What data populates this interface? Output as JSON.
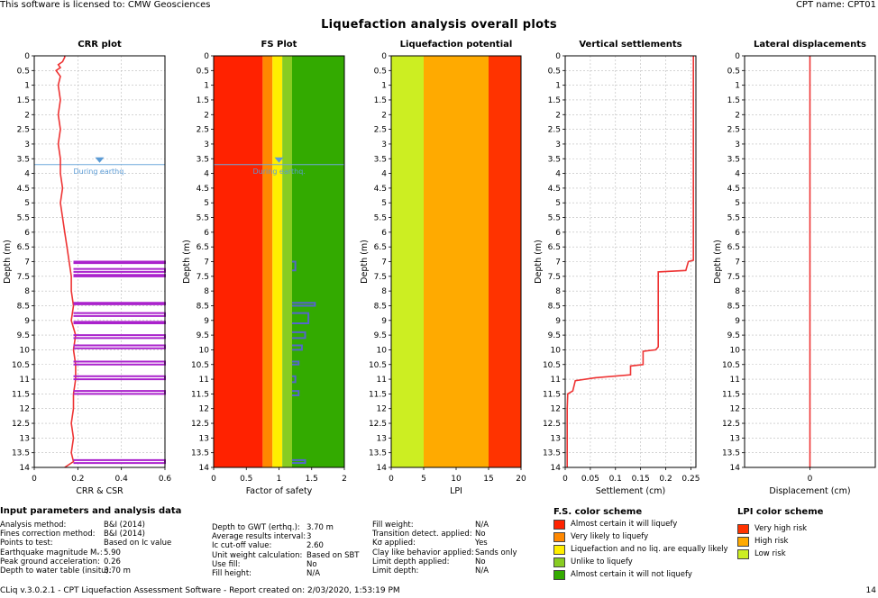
{
  "header": {
    "license": "This software is licensed to: CMW Geosciences",
    "cpt_name": "CPT name: CPT01",
    "title": "Liquefaction analysis overall plots"
  },
  "chart_data": [
    {
      "id": "crr",
      "type": "line",
      "title": "CRR plot",
      "xlabel": "CRR & CSR",
      "ylabel": "Depth (m)",
      "xlim": [
        0,
        0.6
      ],
      "ylim": [
        14,
        0
      ],
      "xticks": [
        "0",
        "0.2",
        "0.4",
        "0.6"
      ],
      "yticks": [
        "0",
        "0.5",
        "1",
        "1.5",
        "2",
        "2.5",
        "3",
        "3.5",
        "4",
        "4.5",
        "5",
        "5.5",
        "6",
        "6.5",
        "7",
        "7.5",
        "8",
        "8.5",
        "9",
        "9.5",
        "10",
        "10.5",
        "11",
        "11.5",
        "12",
        "12.5",
        "13",
        "13.5",
        "14"
      ],
      "annotation": "During earthq.",
      "gwt_depth": 3.7,
      "series": [
        {
          "name": "CRR",
          "color": "#ee3333",
          "points": [
            [
              0.14,
              0
            ],
            [
              0.14,
              0.05
            ],
            [
              0.13,
              0.2
            ],
            [
              0.11,
              0.3
            ],
            [
              0.12,
              0.4
            ],
            [
              0.1,
              0.5
            ],
            [
              0.12,
              0.7
            ],
            [
              0.11,
              1.0
            ],
            [
              0.12,
              1.5
            ],
            [
              0.11,
              2.0
            ],
            [
              0.12,
              2.5
            ],
            [
              0.11,
              3.0
            ],
            [
              0.12,
              3.5
            ],
            [
              0.12,
              4.0
            ],
            [
              0.13,
              4.5
            ],
            [
              0.12,
              5.0
            ],
            [
              0.13,
              5.5
            ],
            [
              0.14,
              6.0
            ],
            [
              0.15,
              6.5
            ],
            [
              0.16,
              7.0
            ],
            [
              0.17,
              7.5
            ],
            [
              0.17,
              8.0
            ],
            [
              0.18,
              8.5
            ],
            [
              0.17,
              9.0
            ],
            [
              0.19,
              9.5
            ],
            [
              0.18,
              10.0
            ],
            [
              0.19,
              10.5
            ],
            [
              0.19,
              11.0
            ],
            [
              0.18,
              11.5
            ],
            [
              0.18,
              12.0
            ],
            [
              0.17,
              12.5
            ],
            [
              0.18,
              13.0
            ],
            [
              0.17,
              13.5
            ],
            [
              0.18,
              13.8
            ],
            [
              0.14,
              14.0
            ]
          ]
        },
        {
          "name": "CSR",
          "color": "#aa22cc",
          "segments": [
            [
              7.0,
              7.05,
              0.6
            ],
            [
              7.25,
              7.35,
              0.6
            ],
            [
              7.45,
              7.5,
              0.6
            ],
            [
              8.4,
              8.45,
              0.6
            ],
            [
              8.75,
              8.85,
              0.6
            ],
            [
              9.05,
              9.1,
              0.6
            ],
            [
              9.5,
              9.6,
              0.6
            ],
            [
              9.85,
              9.95,
              0.6
            ],
            [
              10.4,
              10.5,
              0.6
            ],
            [
              10.9,
              11.0,
              0.6
            ],
            [
              11.4,
              11.5,
              0.6
            ],
            [
              13.75,
              13.85,
              0.6
            ]
          ]
        }
      ]
    },
    {
      "id": "fs",
      "type": "line",
      "title": "FS Plot",
      "xlabel": "Factor of safety",
      "ylabel": "Depth (m)",
      "xlim": [
        0,
        2
      ],
      "ylim": [
        14,
        0
      ],
      "xticks": [
        "0",
        "0.5",
        "1",
        "1.5",
        "2"
      ],
      "yticks": [
        "0",
        "0.5",
        "1",
        "1.5",
        "2",
        "2.5",
        "3",
        "3.5",
        "4",
        "4.5",
        "5",
        "5.5",
        "6",
        "6.5",
        "7",
        "7.5",
        "8",
        "8.5",
        "9",
        "9.5",
        "10",
        "10.5",
        "11",
        "11.5",
        "12",
        "12.5",
        "13",
        "13.5",
        "14"
      ],
      "annotation": "During earthq.",
      "gwt_depth": 3.7,
      "bands": [
        {
          "from": 0,
          "to": 0.75,
          "color": "#ff2200"
        },
        {
          "from": 0.75,
          "to": 0.9,
          "color": "#ff8800"
        },
        {
          "from": 0.9,
          "to": 1.05,
          "color": "#ffee00"
        },
        {
          "from": 1.05,
          "to": 1.2,
          "color": "#88cc22"
        },
        {
          "from": 1.2,
          "to": 2.0,
          "color": "#33aa00"
        }
      ],
      "series": [
        {
          "name": "FS",
          "color": "#5566cc",
          "segments": [
            [
              7.0,
              7.3,
              1.25
            ],
            [
              8.4,
              8.5,
              1.55
            ],
            [
              8.75,
              9.1,
              1.45
            ],
            [
              9.4,
              9.6,
              1.4
            ],
            [
              9.85,
              10.0,
              1.35
            ],
            [
              10.4,
              10.5,
              1.3
            ],
            [
              10.9,
              11.1,
              1.25
            ],
            [
              11.4,
              11.55,
              1.3
            ],
            [
              13.75,
              13.85,
              1.4
            ]
          ]
        }
      ]
    },
    {
      "id": "lpi",
      "type": "area",
      "title": "Liquefaction potential",
      "xlabel": "LPI",
      "ylabel": "Depth (m)",
      "xlim": [
        0,
        20
      ],
      "ylim": [
        14,
        0
      ],
      "xticks": [
        "0",
        "5",
        "10",
        "15",
        "20"
      ],
      "yticks": [
        "0",
        "0.5",
        "1",
        "1.5",
        "2",
        "2.5",
        "3",
        "3.5",
        "4",
        "4.5",
        "5",
        "5.5",
        "6",
        "6.5",
        "7",
        "7.5",
        "8",
        "8.5",
        "9",
        "9.5",
        "10",
        "10.5",
        "11",
        "11.5",
        "12",
        "12.5",
        "13",
        "13.5",
        "14"
      ],
      "bands": [
        {
          "from": 0,
          "to": 5,
          "color": "#ccee22"
        },
        {
          "from": 5,
          "to": 15,
          "color": "#ffaa00"
        },
        {
          "from": 15,
          "to": 20,
          "color": "#ff3300"
        }
      ]
    },
    {
      "id": "settle",
      "type": "line",
      "title": "Vertical settlements",
      "xlabel": "Settlement (cm)",
      "ylabel": "Depth (m)",
      "xlim": [
        0,
        0.26
      ],
      "ylim": [
        14,
        0
      ],
      "xticks": [
        "0",
        "0.05",
        "0.1",
        "0.15",
        "0.2",
        "0.25"
      ],
      "yticks": [
        "0",
        "0.5",
        "1",
        "1.5",
        "2",
        "2.5",
        "3",
        "3.5",
        "4",
        "4.5",
        "5",
        "5.5",
        "6",
        "6.5",
        "7",
        "7.5",
        "8",
        "8.5",
        "9",
        "9.5",
        "10",
        "10.5",
        "11",
        "11.5",
        "12",
        "12.5",
        "13",
        "13.5",
        "14"
      ],
      "series": [
        {
          "name": "Settlement",
          "color": "#ee3333",
          "points": [
            [
              0.255,
              0
            ],
            [
              0.255,
              6.95
            ],
            [
              0.245,
              7.0
            ],
            [
              0.24,
              7.3
            ],
            [
              0.185,
              7.35
            ],
            [
              0.185,
              9.9
            ],
            [
              0.18,
              10.0
            ],
            [
              0.155,
              10.05
            ],
            [
              0.155,
              10.5
            ],
            [
              0.13,
              10.55
            ],
            [
              0.13,
              10.85
            ],
            [
              0.06,
              10.95
            ],
            [
              0.02,
              11.05
            ],
            [
              0.015,
              11.4
            ],
            [
              0.005,
              11.5
            ],
            [
              0.004,
              12.0
            ],
            [
              0.004,
              14.0
            ]
          ]
        }
      ]
    },
    {
      "id": "lateral",
      "type": "line",
      "title": "Lateral displacements",
      "xlabel": "Displacement (cm)",
      "ylabel": "Depth (m)",
      "xlim": [
        -1,
        1
      ],
      "ylim": [
        14,
        0
      ],
      "xticks": [
        "0"
      ],
      "yticks": [
        "0",
        "0.5",
        "1",
        "1.5",
        "2",
        "2.5",
        "3",
        "3.5",
        "4",
        "4.5",
        "5",
        "5.5",
        "6",
        "6.5",
        "7",
        "7.5",
        "8",
        "8.5",
        "9",
        "9.5",
        "10",
        "10.5",
        "11",
        "11.5",
        "12",
        "12.5",
        "13",
        "13.5",
        "14"
      ],
      "series": [
        {
          "name": "Displacement",
          "color": "#ee3333",
          "points": [
            [
              0,
              0
            ],
            [
              0,
              14
            ]
          ]
        }
      ]
    }
  ],
  "inputs": {
    "heading": "Input parameters and analysis data",
    "col1": [
      [
        "Analysis method:",
        "B&I (2014)"
      ],
      [
        "Fines correction method:",
        "B&I (2014)"
      ],
      [
        "Points to test:",
        "Based on Ic value"
      ],
      [
        "Earthquake magnitude Mᵥ:",
        "5.90"
      ],
      [
        "Peak ground acceleration:",
        "0.26"
      ],
      [
        "Depth to water table (insitu):",
        "3.70 m"
      ]
    ],
    "col2": [
      [
        "Depth to GWT (erthq.):",
        "3.70 m"
      ],
      [
        "Average results interval:",
        "3"
      ],
      [
        "Ic cut-off value:",
        "2.60"
      ],
      [
        "Unit weight calculation:",
        "Based on SBT"
      ],
      [
        "Use fill:",
        "No"
      ],
      [
        "Fill height:",
        "N/A"
      ]
    ],
    "col3": [
      [
        "Fill weight:",
        "N/A"
      ],
      [
        "Transition detect. applied:",
        "No"
      ],
      [
        "Kσ applied:",
        "Yes"
      ],
      [
        "Clay like behavior applied:",
        "Sands only"
      ],
      [
        "Limit depth applied:",
        "No"
      ],
      [
        "Limit depth:",
        "N/A"
      ]
    ]
  },
  "fs_legend": {
    "heading": "F.S. color scheme",
    "items": [
      {
        "label": "Almost certain it will liquefy",
        "color": "#ff2200"
      },
      {
        "label": "Very likely to liquefy",
        "color": "#ff8800"
      },
      {
        "label": "Liquefaction and no liq. are equally likely",
        "color": "#ffee00"
      },
      {
        "label": "Unlike to liquefy",
        "color": "#88cc22"
      },
      {
        "label": "Almost certain it will not liquefy",
        "color": "#33aa00"
      }
    ]
  },
  "lpi_legend": {
    "heading": "LPI color scheme",
    "items": [
      {
        "label": "Very high risk",
        "color": "#ff3300"
      },
      {
        "label": "High risk",
        "color": "#ffaa00"
      },
      {
        "label": "Low risk",
        "color": "#ccee22"
      }
    ]
  },
  "footer": {
    "text": "CLiq v.3.0.2.1 - CPT Liquefaction Assessment Software - Report created on: 2/03/2020, 1:53:19 PM",
    "page": "14"
  }
}
